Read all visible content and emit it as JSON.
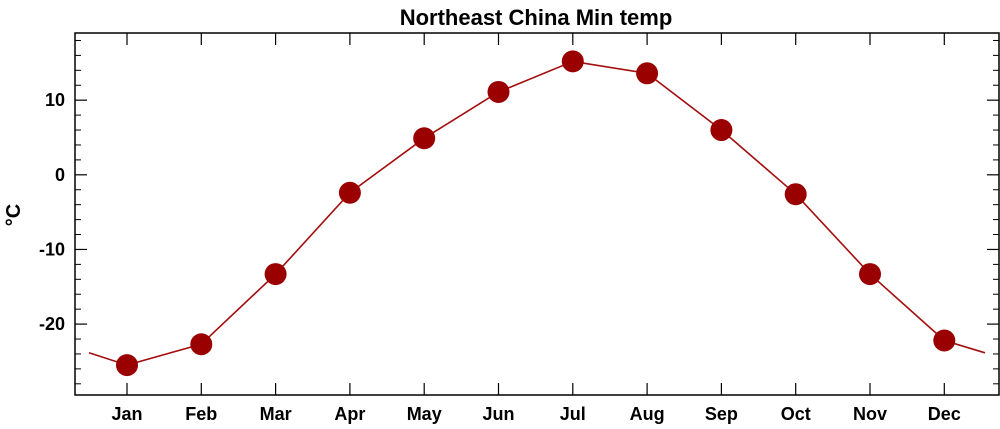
{
  "chart_data": {
    "type": "line",
    "title": "Northeast China Min temp",
    "xlabel": "",
    "ylabel": "°C",
    "categories": [
      "Jan",
      "Feb",
      "Mar",
      "Apr",
      "May",
      "Jun",
      "Jul",
      "Aug",
      "Sep",
      "Oct",
      "Nov",
      "Dec"
    ],
    "series": [
      {
        "values": [
          -25.5,
          -22.7,
          -13.3,
          -2.4,
          4.9,
          11.1,
          15.2,
          13.6,
          6.0,
          -2.6,
          -13.3,
          -22.2
        ]
      }
    ],
    "ylim": [
      -29.5,
      19
    ],
    "yticks": [
      -20,
      -10,
      0,
      10
    ],
    "ytick_labels": [
      "-20",
      "-10",
      "0",
      "10"
    ],
    "grid": false,
    "legend": "none",
    "line_color": "#a30d0d",
    "marker_color": "#9b0000"
  }
}
